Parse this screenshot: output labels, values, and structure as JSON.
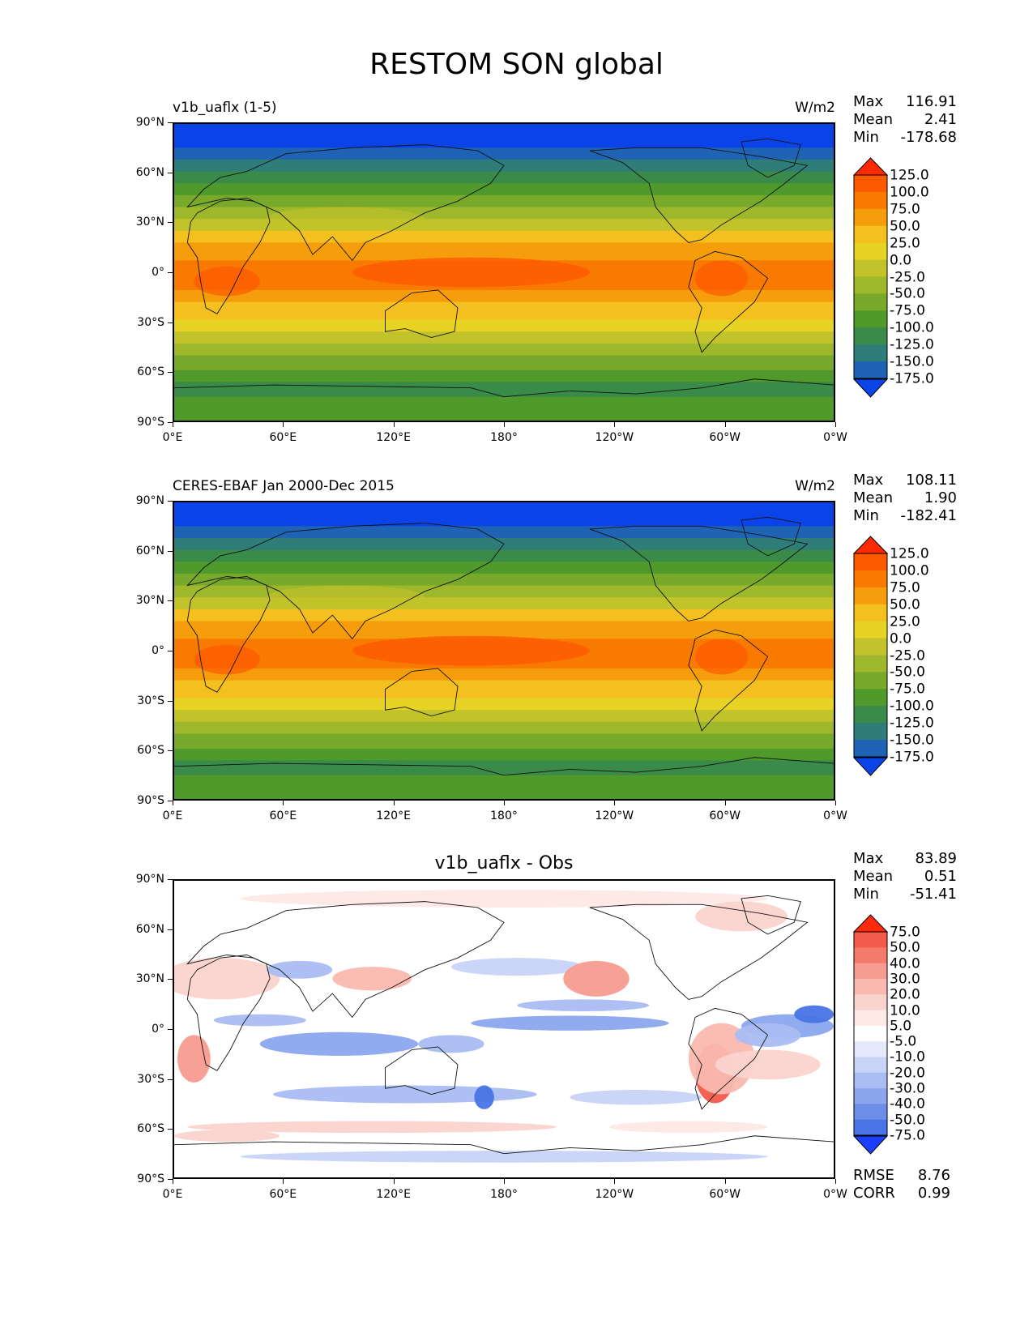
{
  "title": "RESTOM SON global",
  "lat_ticks": [
    "90°N",
    "60°N",
    "30°N",
    "0°",
    "30°S",
    "60°S",
    "90°S"
  ],
  "lon_ticks": [
    "0°E",
    "60°E",
    "120°E",
    "180°",
    "120°W",
    "60°W",
    "0°W"
  ],
  "panels": [
    {
      "label": "v1b_uaflx (1-5)",
      "units": "W/m2",
      "center_title": "",
      "stats": [
        {
          "label": "Max",
          "value": "116.91"
        },
        {
          "label": "Mean",
          "value": "2.41"
        },
        {
          "label": "Min",
          "value": "-178.68"
        }
      ],
      "colorbar": {
        "levels": [
          "125.0",
          "100.0",
          "75.0",
          "50.0",
          "25.0",
          "0.0",
          "-25.0",
          "-50.0",
          "-75.0",
          "-100.0",
          "-125.0",
          "-150.0",
          "-175.0"
        ],
        "colors": [
          "#ff2a00",
          "#fd5a00",
          "#f97a00",
          "#f59d0a",
          "#f3c01f",
          "#e7d324",
          "#c2c22a",
          "#9fb82b",
          "#79a92b",
          "#4f9a2a",
          "#3a8a4a",
          "#2e7d78",
          "#1f64b4",
          "#0a44e8"
        ]
      },
      "colormap_kind": "full"
    },
    {
      "label": "CERES-EBAF Jan 2000-Dec 2015",
      "units": "W/m2",
      "center_title": "",
      "stats": [
        {
          "label": "Max",
          "value": "108.11"
        },
        {
          "label": "Mean",
          "value": "1.90"
        },
        {
          "label": "Min",
          "value": "-182.41"
        }
      ],
      "colorbar": {
        "levels": [
          "125.0",
          "100.0",
          "75.0",
          "50.0",
          "25.0",
          "0.0",
          "-25.0",
          "-50.0",
          "-75.0",
          "-100.0",
          "-125.0",
          "-150.0",
          "-175.0"
        ],
        "colors": [
          "#ff2a00",
          "#fd5a00",
          "#f97a00",
          "#f59d0a",
          "#f3c01f",
          "#e7d324",
          "#c2c22a",
          "#9fb82b",
          "#79a92b",
          "#4f9a2a",
          "#3a8a4a",
          "#2e7d78",
          "#1f64b4",
          "#0a44e8"
        ]
      },
      "colormap_kind": "full"
    },
    {
      "label": "",
      "units": "",
      "center_title": "v1b_uaflx - Obs",
      "stats": [
        {
          "label": "Max",
          "value": "83.89"
        },
        {
          "label": "Mean",
          "value": "0.51"
        },
        {
          "label": "Min",
          "value": "-51.41"
        }
      ],
      "colorbar": {
        "levels": [
          "75.0",
          "50.0",
          "40.0",
          "30.0",
          "20.0",
          "10.0",
          "5.0",
          "-5.0",
          "-10.0",
          "-20.0",
          "-30.0",
          "-40.0",
          "-50.0",
          "-75.0"
        ],
        "colors": [
          "#ff2a0a",
          "#f25a4a",
          "#f47a6c",
          "#f79c90",
          "#f9b9b0",
          "#fbd3cd",
          "#fde9e6",
          "#ffffff",
          "#e3e9fb",
          "#c7d3f7",
          "#aabdf2",
          "#8ba6ee",
          "#6c8ee9",
          "#4a74e6",
          "#1a3fff"
        ]
      },
      "colormap_kind": "diff",
      "metrics": [
        {
          "label": "RMSE",
          "value": "8.76"
        },
        {
          "label": "CORR",
          "value": "0.99"
        }
      ]
    }
  ]
}
